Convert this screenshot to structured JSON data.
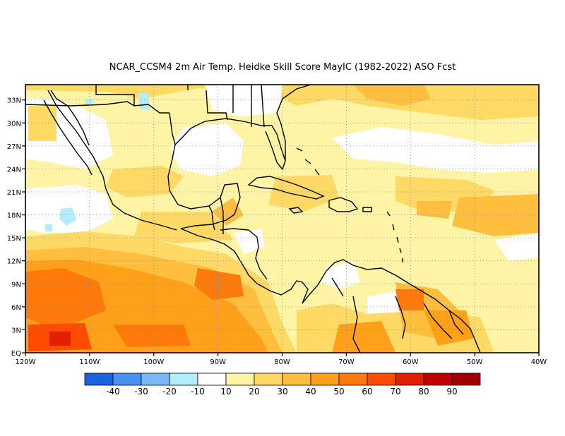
{
  "title": "NCAR_CCSM4  2m Air Temp. Heidke Skill Score MayIC (1982-2022) ASO Fcst",
  "map": {
    "lat_ticks": [
      "33N",
      "30N",
      "27N",
      "24N",
      "21N",
      "18N",
      "15N",
      "12N",
      "9N",
      "6N",
      "3N",
      "EQ"
    ],
    "lat_values": [
      33,
      30,
      27,
      24,
      21,
      18,
      15,
      12,
      9,
      6,
      3,
      0
    ],
    "lon_ticks": [
      "120W",
      "110W",
      "100W",
      "90W",
      "80W",
      "70W",
      "60W",
      "50W",
      "40W"
    ],
    "lon_values": [
      -120,
      -110,
      -100,
      -90,
      -80,
      -70,
      -60,
      -50,
      -40
    ],
    "lon_range": [
      -120,
      -40
    ],
    "lat_range": [
      0,
      35
    ],
    "grid": true,
    "grid_style": "dotted"
  },
  "colorbar": {
    "colors": [
      "#1a62e0",
      "#4b92f0",
      "#7ab9f5",
      "#b3ecfa",
      "#ffffff",
      "#fff4a6",
      "#ffd966",
      "#ffbe3e",
      "#ffa01a",
      "#ff7a0a",
      "#ff4c00",
      "#e02000",
      "#c00000",
      "#a00000"
    ],
    "labels": [
      "-40",
      "-30",
      "-20",
      "-10",
      "10",
      "20",
      "30",
      "40",
      "50",
      "60",
      "70",
      "80",
      "90"
    ]
  }
}
